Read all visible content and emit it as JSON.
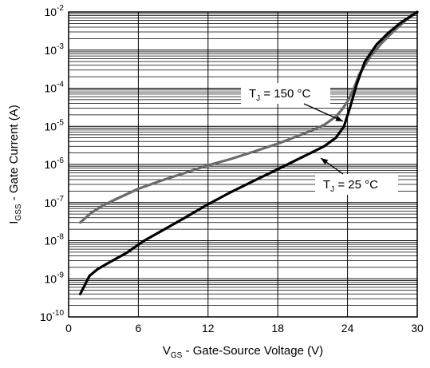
{
  "chart_data": {
    "type": "line",
    "x_label": {
      "main": "V",
      "sub": "GS",
      "rest": " - Gate-Source Voltage (V)"
    },
    "y_label": {
      "main": "I",
      "sub": "GSS",
      "rest": " - Gate Current (A)"
    },
    "xlim": [
      0,
      30
    ],
    "ylim": [
      1e-10,
      0.01
    ],
    "y_scale": "log",
    "grid": true,
    "x_ticks": [
      {
        "value": 0,
        "label": "0"
      },
      {
        "value": 6,
        "label": "6"
      },
      {
        "value": 12,
        "label": "12"
      },
      {
        "value": 18,
        "label": "18"
      },
      {
        "value": 24,
        "label": "24"
      },
      {
        "value": 30,
        "label": "30"
      }
    ],
    "y_ticks": [
      {
        "value": 1e-10,
        "base": "10",
        "exp": "-10"
      },
      {
        "value": 1e-09,
        "base": "10",
        "exp": "-9"
      },
      {
        "value": 1e-08,
        "base": "10",
        "exp": "-8"
      },
      {
        "value": 1e-07,
        "base": "10",
        "exp": "-7"
      },
      {
        "value": 1e-06,
        "base": "10",
        "exp": "-6"
      },
      {
        "value": 1e-05,
        "base": "10",
        "exp": "-5"
      },
      {
        "value": 0.0001,
        "base": "10",
        "exp": "-4"
      },
      {
        "value": 0.001,
        "base": "10",
        "exp": "-3"
      },
      {
        "value": 0.01,
        "base": "10",
        "exp": "-2"
      }
    ],
    "series": [
      {
        "name": "T_J = 150 °C",
        "color": "#6a6a6a",
        "x": [
          1,
          2,
          3,
          4,
          6,
          8,
          10,
          12,
          14,
          16,
          18,
          20,
          21,
          22,
          23,
          23.5,
          24,
          24.5,
          25,
          26,
          27,
          28,
          29,
          30
        ],
        "y": [
          3e-08,
          5.5e-08,
          8.5e-08,
          1.2e-07,
          2.3e-07,
          3.8e-07,
          6e-07,
          9.5e-07,
          1.4e-06,
          2.2e-06,
          3.5e-06,
          6e-06,
          8e-06,
          1.1e-05,
          1.8e-05,
          2.7e-05,
          4.5e-05,
          9e-05,
          0.00023,
          0.0007,
          0.0016,
          0.0032,
          0.006,
          0.01
        ]
      },
      {
        "name": "T_J = 25 °C",
        "color": "#000000",
        "x": [
          1,
          1.8,
          2.5,
          3.5,
          5,
          6.5,
          8,
          10,
          12,
          14,
          16,
          18,
          20,
          22,
          23,
          23.7,
          24.2,
          24.8,
          25.5,
          26.5,
          27.5,
          28.5,
          29.5,
          30
        ],
        "y": [
          4e-10,
          1.2e-09,
          1.8e-09,
          2.7e-09,
          4.8e-09,
          1e-08,
          1.8e-08,
          4e-08,
          9e-08,
          1.9e-07,
          3.8e-07,
          7.5e-07,
          1.5e-06,
          3e-06,
          5e-06,
          1e-05,
          3e-05,
          0.00013,
          0.0005,
          0.0014,
          0.0028,
          0.005,
          0.008,
          0.01
        ]
      }
    ],
    "annotations": [
      {
        "series": 0,
        "main": "T",
        "sub": "J",
        "rest": " = 150 °C"
      },
      {
        "series": 1,
        "main": "T",
        "sub": "J",
        "rest": " = 25 °C"
      }
    ]
  }
}
